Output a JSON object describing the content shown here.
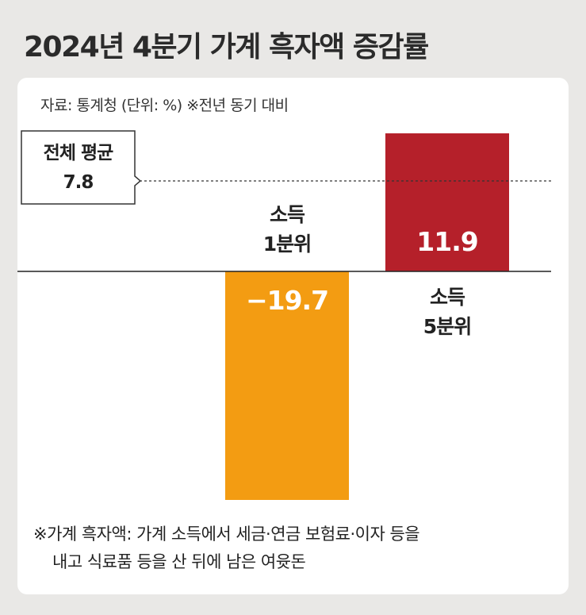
{
  "title": "2024년 4분기 가계 흑자액 증감률",
  "source": "자료: 통계청 (단위: %)  ※전년 동기 대비",
  "footnote": {
    "line1": "※가계 흑자액: 가계 소득에서 세금·연금 보험료·이자 등을",
    "line2": "내고 식료품 등을 산 뒤에 남은 여윳돈"
  },
  "chart_data": {
    "type": "bar",
    "categories": [
      "소득\n1분위",
      "소득\n5분위"
    ],
    "values": [
      -19.7,
      11.9
    ],
    "value_labels": [
      "−19.7",
      "11.9"
    ],
    "colors": [
      "#f39c12",
      "#b5202a"
    ],
    "reference_line": {
      "label": "전체 평균",
      "value": 7.8,
      "value_label": "7.8"
    },
    "unit": "%",
    "ylim": [
      -19.7,
      11.9
    ]
  }
}
